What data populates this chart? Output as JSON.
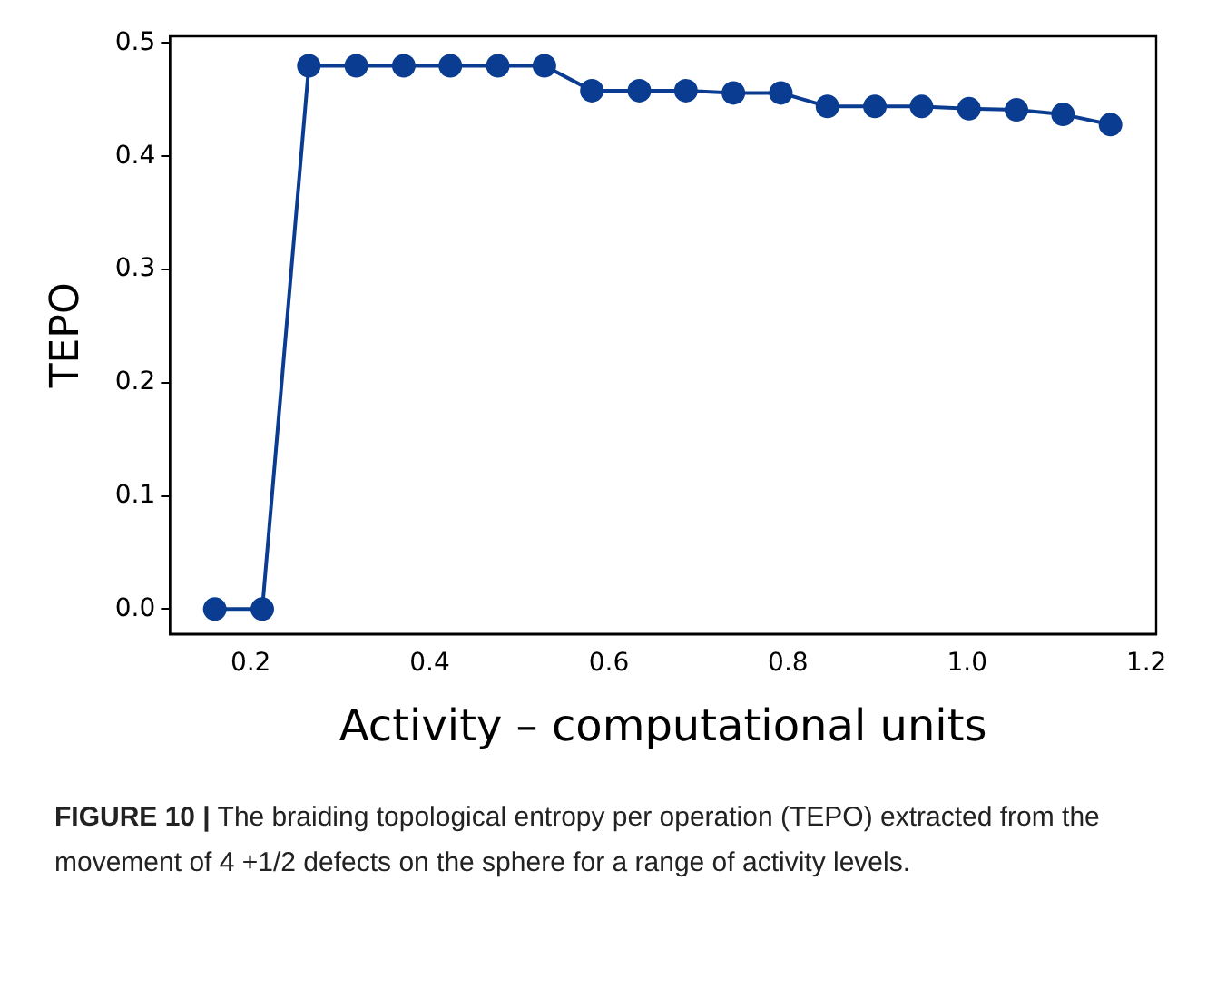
{
  "chart_data": {
    "type": "line",
    "xlabel": "Activity – computational units",
    "ylabel": "TEPO",
    "x": [
      0.16,
      0.213,
      0.265,
      0.318,
      0.371,
      0.423,
      0.476,
      0.528,
      0.581,
      0.634,
      0.686,
      0.739,
      0.792,
      0.844,
      0.897,
      0.949,
      1.002,
      1.055,
      1.107,
      1.16
    ],
    "series": [
      {
        "color": "#0a3d91",
        "values": [
          0,
          0,
          0.48,
          0.48,
          0.48,
          0.48,
          0.48,
          0.48,
          0.458,
          0.458,
          0.458,
          0.456,
          0.456,
          0.444,
          0.444,
          0.444,
          0.442,
          0.441,
          0.437,
          0.428
        ]
      }
    ],
    "xlim": [
      0.11,
      1.211
    ],
    "xticks": [
      {
        "value": 0.2,
        "label": "0.2"
      },
      {
        "value": 0.4,
        "label": "0.4"
      },
      {
        "value": 0.6,
        "label": "0.6"
      },
      {
        "value": 0.8,
        "label": "0.8"
      },
      {
        "value": 1.0,
        "label": "1.0"
      },
      {
        "value": 1.2,
        "label": "1.2"
      }
    ],
    "ylim": [
      -0.022,
      0.506
    ],
    "yticks": [
      {
        "value": 0,
        "label": "0.0"
      },
      {
        "value": 0.1,
        "label": "0.1"
      },
      {
        "value": 0.2,
        "label": "0.2"
      },
      {
        "value": 0.3,
        "label": "0.3"
      },
      {
        "value": 0.4,
        "label": "0.4"
      },
      {
        "value": 0.5,
        "label": "0.5"
      }
    ],
    "grid": false,
    "legend": false,
    "marker": "circle",
    "line_style": "solid",
    "annotations": [
      "FIGURE 10 | The braiding topological entropy per operation (TEPO) extracted from the movement of 4 +1/2 defects on the sphere for a range of activity levels."
    ]
  }
}
